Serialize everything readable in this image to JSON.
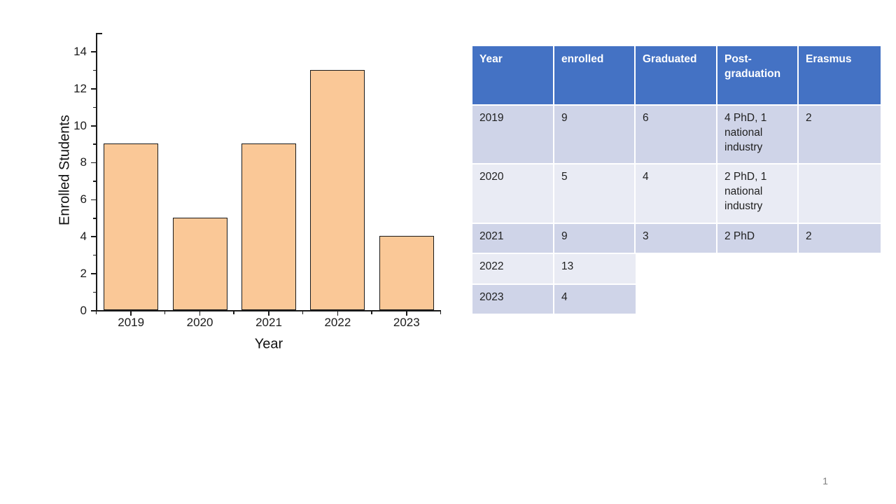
{
  "slide": {
    "page_number": "1",
    "background": "#FFFFFF"
  },
  "chart_data": [
    {
      "type": "bar",
      "title": "",
      "categories": [
        "2019",
        "2020",
        "2021",
        "2022",
        "2023"
      ],
      "values": [
        9,
        5,
        9,
        13,
        4
      ],
      "xlabel": "Year",
      "ylabel": "Enrolled Students",
      "ylim": [
        0,
        15
      ],
      "y_major_ticks": [
        0,
        2,
        4,
        6,
        8,
        10,
        12,
        14
      ],
      "y_minor_ticks": [
        1,
        3,
        5,
        7,
        9,
        11,
        13,
        15
      ],
      "grid": false,
      "legend": "none",
      "bar_color": "#FAC897",
      "bar_edge_color": "#1A1A1A",
      "axis_color": "#1A1A1A",
      "tick_label_color": "#1A1A1A"
    },
    {
      "type": "table",
      "columns": [
        "Year",
        "enrolled",
        "Graduated",
        "Post-graduation",
        "Erasmus"
      ],
      "rows": [
        [
          "2019",
          "9",
          "6",
          "4 PhD, 1 national industry",
          "2"
        ],
        [
          "2020",
          "5",
          "4",
          "2 PhD, 1 national industry",
          ""
        ],
        [
          "2021",
          "9",
          "3",
          "2 PhD",
          "2"
        ],
        [
          "2022",
          "13"
        ],
        [
          "2023",
          "4"
        ]
      ],
      "colors": {
        "header_bg": "#4472C4",
        "header_text": "#FFFFFF",
        "row_dark": "#CFD4E8",
        "row_light": "#E9EBF4",
        "cell_text": "#1F1F1F",
        "separator": "#FFFFFF"
      }
    }
  ]
}
